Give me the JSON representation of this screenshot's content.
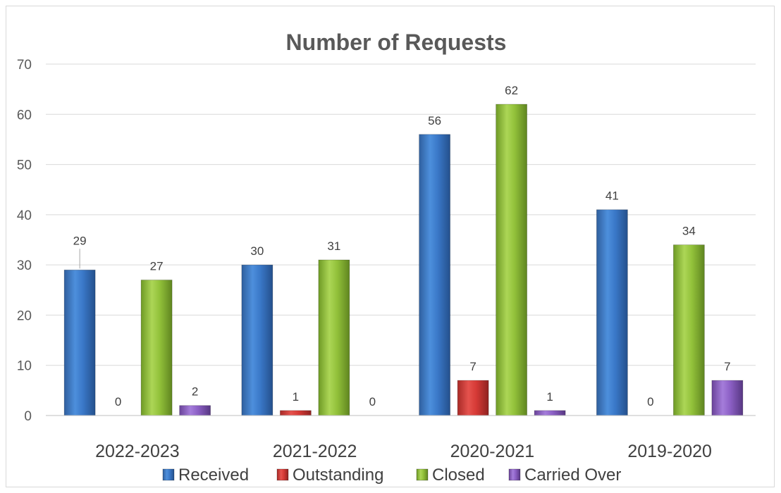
{
  "chart_data": {
    "type": "bar",
    "title": "Number of Requests",
    "categories": [
      "2022-2023",
      "2021-2022",
      "2020-2021",
      "2019-2020"
    ],
    "series": [
      {
        "name": "Received",
        "values": [
          29,
          30,
          56,
          41
        ],
        "color": "#3a78c8"
      },
      {
        "name": "Outstanding",
        "values": [
          0,
          1,
          7,
          0
        ],
        "color": "#d63a36"
      },
      {
        "name": "Closed",
        "values": [
          27,
          31,
          62,
          34
        ],
        "color": "#92c13a"
      },
      {
        "name": "Carried Over",
        "values": [
          2,
          0,
          1,
          7
        ],
        "color": "#8b5fc4"
      }
    ],
    "ylim": [
      0,
      70
    ],
    "yticks": [
      0,
      10,
      20,
      30,
      40,
      50,
      60,
      70
    ],
    "grid": true,
    "legend_position": "bottom"
  }
}
